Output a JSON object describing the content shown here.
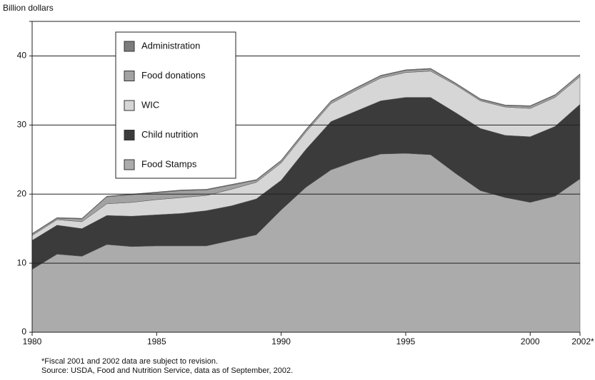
{
  "chart_data": {
    "type": "stacked_area",
    "y_label": "Billion dollars",
    "x": [
      1980,
      1981,
      1982,
      1983,
      1984,
      1985,
      1986,
      1987,
      1988,
      1989,
      1990,
      1991,
      1992,
      1993,
      1994,
      1995,
      1996,
      1997,
      1998,
      1999,
      2000,
      2001,
      2002
    ],
    "series": [
      {
        "name": "Food Stamps",
        "color": "#ababab",
        "values": [
          9.1,
          11.3,
          11.0,
          12.7,
          12.4,
          12.5,
          12.5,
          12.5,
          13.3,
          14.1,
          17.7,
          21.0,
          23.5,
          24.8,
          25.8,
          25.9,
          25.7,
          23.0,
          20.5,
          19.5,
          18.8,
          19.7,
          22.2
        ]
      },
      {
        "name": "Child nutrition",
        "color": "#3b3b3b",
        "values": [
          4.2,
          4.2,
          4.0,
          4.2,
          4.4,
          4.5,
          4.7,
          5.1,
          5.0,
          5.2,
          4.3,
          5.5,
          7.0,
          7.2,
          7.7,
          8.1,
          8.3,
          8.8,
          9.0,
          9.0,
          9.5,
          10.1,
          10.8
        ]
      },
      {
        "name": "WIC",
        "color": "#d6d6d6",
        "values": [
          0.7,
          0.8,
          1.0,
          1.7,
          2.0,
          2.2,
          2.3,
          2.2,
          2.4,
          2.4,
          2.5,
          2.5,
          2.6,
          3.0,
          3.3,
          3.6,
          3.8,
          4.0,
          4.0,
          4.1,
          4.1,
          4.2,
          4.0
        ]
      },
      {
        "name": "Food donations",
        "color": "#a2a2a2",
        "values": [
          0.2,
          0.2,
          0.4,
          1.0,
          1.1,
          1.0,
          1.0,
          0.8,
          0.6,
          0.3,
          0.3,
          0.3,
          0.3,
          0.3,
          0.3,
          0.3,
          0.3,
          0.2,
          0.2,
          0.2,
          0.3,
          0.3,
          0.3
        ]
      },
      {
        "name": "Administration",
        "color": "#7c7c7c",
        "values": [
          0.1,
          0.1,
          0.1,
          0.1,
          0.1,
          0.1,
          0.1,
          0.1,
          0.1,
          0.1,
          0.1,
          0.1,
          0.1,
          0.1,
          0.1,
          0.1,
          0.1,
          0.1,
          0.1,
          0.1,
          0.1,
          0.1,
          0.1
        ]
      }
    ],
    "xlim": [
      1980,
      2002
    ],
    "xticks": [
      1980,
      1985,
      1990,
      1995,
      2000,
      {
        "value": 2002,
        "label": "2002*"
      }
    ],
    "ylim": [
      0,
      45
    ],
    "yticks": [
      0,
      10,
      20,
      30,
      40
    ],
    "grid": true,
    "footnote": "*Fiscal 2001 and 2002 data are subject to revision.",
    "source": "Source: USDA, Food and Nutrition Service, data as of September, 2002."
  }
}
